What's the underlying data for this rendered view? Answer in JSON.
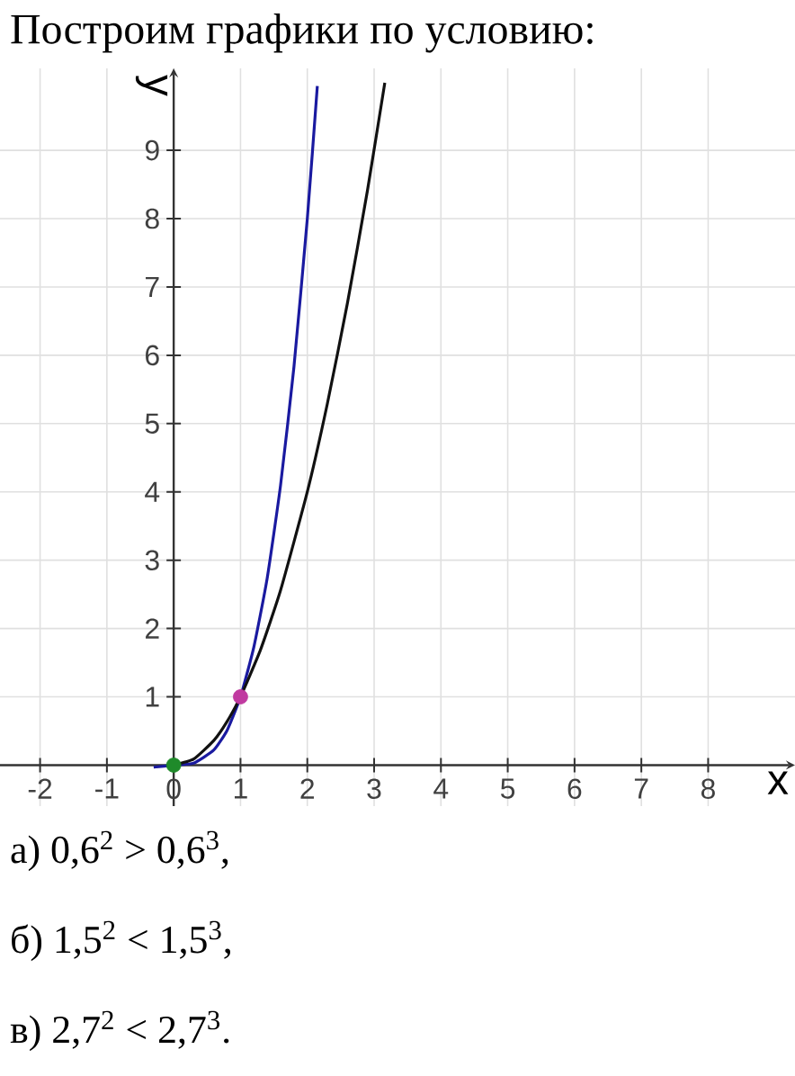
{
  "chart_data": {
    "type": "line",
    "title": "Построим графики по условию:",
    "xlabel": "x",
    "ylabel": "y",
    "xlim": [
      -2.6,
      9.3
    ],
    "ylim": [
      -0.6,
      10.2
    ],
    "xticks": [
      -2,
      -1,
      0,
      1,
      2,
      3,
      4,
      5,
      6,
      7,
      8
    ],
    "yticks": [
      1,
      2,
      3,
      4,
      5,
      6,
      7,
      8,
      9
    ],
    "grid": true,
    "series": [
      {
        "color": "#1a1aa0",
        "x": [
          -0.3,
          0,
          0.3,
          0.6,
          0.8,
          1,
          1.2,
          1.4,
          1.6,
          1.8,
          2,
          2.15
        ],
        "values": [
          -0.03,
          0,
          0.03,
          0.22,
          0.51,
          1,
          1.73,
          2.74,
          4.1,
          5.83,
          8,
          9.94
        ]
      },
      {
        "color": "#111111",
        "x": [
          0,
          0.3,
          0.6,
          0.8,
          1,
          1.3,
          1.6,
          2,
          2.3,
          2.6,
          2.9,
          3.16
        ],
        "values": [
          0,
          0.09,
          0.36,
          0.64,
          1,
          1.69,
          2.56,
          4,
          5.29,
          6.76,
          8.41,
          9.99
        ]
      },
      {
        "type": "scatter",
        "marker": "circle",
        "x": [
          0,
          1
        ],
        "values": [
          0,
          1
        ],
        "colors": [
          "#1f8a2a",
          "#c03aa0"
        ]
      }
    ],
    "annotations": [
      "а) 0,6$^{2}$ > 0,6$^{3}$,",
      "б) 1,5$^{2}$ < 1,5$^{3}$,",
      "в) 2,7$^{2}$ < 2,7$^{3}$."
    ]
  }
}
